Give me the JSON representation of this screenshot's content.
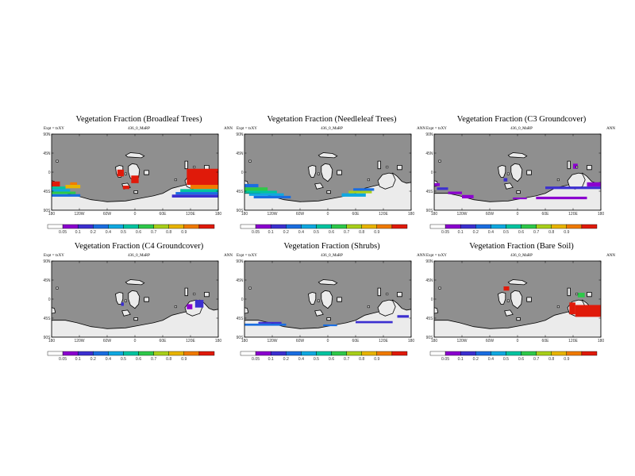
{
  "lat_ticks": [
    "90N",
    "45N",
    "0",
    "45S",
    "90S"
  ],
  "lat_values": [
    90,
    45,
    0,
    -45,
    -90
  ],
  "lon_ticks": [
    "180",
    "120W",
    "60W",
    "0",
    "60E",
    "120E",
    "180"
  ],
  "lon_values": [
    -180,
    -120,
    -60,
    0,
    60,
    120,
    180
  ],
  "colorbar": {
    "colors": [
      "#ffffff",
      "#8b00cf",
      "#3c2fd0",
      "#1a6de0",
      "#10a8e0",
      "#00c4a0",
      "#2ec84a",
      "#a8cf1a",
      "#e8b400",
      "#f07a00",
      "#e01a0a"
    ],
    "labels": [
      "0.05",
      "0.1",
      "0.2",
      "0.4",
      "0.5",
      "0.6",
      "0.7",
      "0.8",
      "0.9"
    ]
  },
  "map_colors": {
    "ocean": "#8f8f8f",
    "land_zero": "#ebebeb",
    "coast": "#000000"
  },
  "panels": [
    {
      "title": "Vegetation Fraction (Broadleaf Trees)",
      "left": "Expt = txXY",
      "center": "436_0_MaRP",
      "right": "ANN",
      "bands": [
        {
          "lon": [
            -180,
            -162
          ],
          "lat": [
            -22,
            -34
          ],
          "level": 10
        },
        {
          "lon": [
            -180,
            -150
          ],
          "lat": [
            -34,
            -40
          ],
          "level": 5
        },
        {
          "lon": [
            -180,
            -140
          ],
          "lat": [
            -40,
            -46
          ],
          "level": 4
        },
        {
          "lon": [
            -180,
            -128
          ],
          "lat": [
            -46,
            -52
          ],
          "level": 6
        },
        {
          "lon": [
            -180,
            -118
          ],
          "lat": [
            -52,
            -58
          ],
          "level": 3
        },
        {
          "lon": [
            -150,
            -118
          ],
          "lat": [
            -30,
            -38
          ],
          "level": 8
        },
        {
          "lon": [
            -140,
            -125
          ],
          "lat": [
            -24,
            -30
          ],
          "level": 9
        },
        {
          "lon": [
            112,
            180
          ],
          "lat": [
            8,
            -30
          ],
          "level": 10
        },
        {
          "lon": [
            120,
            180
          ],
          "lat": [
            -30,
            -40
          ],
          "level": 9
        },
        {
          "lon": [
            98,
            180
          ],
          "lat": [
            -40,
            -47
          ],
          "level": 5
        },
        {
          "lon": [
            88,
            180
          ],
          "lat": [
            -47,
            -53
          ],
          "level": 3
        },
        {
          "lon": [
            80,
            180
          ],
          "lat": [
            -53,
            -60
          ],
          "level": 2
        },
        {
          "lon": [
            -38,
            -24
          ],
          "lat": [
            6,
            -10
          ],
          "level": 10
        },
        {
          "lon": [
            -8,
            8
          ],
          "lat": [
            -8,
            -26
          ],
          "level": 10
        },
        {
          "lon": [
            -26,
            -12
          ],
          "lat": [
            -32,
            -40
          ],
          "level": 10
        }
      ]
    },
    {
      "title": "Vegetation Fraction (Needleleaf Trees)",
      "left": "Expt = txXY",
      "center": "436_0_MaRP",
      "right": "ANN",
      "bands": [
        {
          "lon": [
            -180,
            -150
          ],
          "lat": [
            -28,
            -36
          ],
          "level": 3
        },
        {
          "lon": [
            -180,
            -130
          ],
          "lat": [
            -36,
            -44
          ],
          "level": 6
        },
        {
          "lon": [
            -180,
            -110
          ],
          "lat": [
            -44,
            -50
          ],
          "level": 5
        },
        {
          "lon": [
            -170,
            -95
          ],
          "lat": [
            -50,
            -56
          ],
          "level": 4
        },
        {
          "lon": [
            -160,
            -80
          ],
          "lat": [
            -56,
            -62
          ],
          "level": 3
        },
        {
          "lon": [
            30,
            82
          ],
          "lat": [
            -50,
            -58
          ],
          "level": 4
        },
        {
          "lon": [
            45,
            95
          ],
          "lat": [
            -44,
            -50
          ],
          "level": 7
        },
        {
          "lon": [
            55,
            100
          ],
          "lat": [
            -38,
            -44
          ],
          "level": 3
        }
      ]
    },
    {
      "title": "Vegetation Fraction (C3 Groundcover)",
      "left": "Expt = txXY",
      "center": "436_0_MaRP",
      "right": "ANN",
      "bands": [
        {
          "lon": [
            -180,
            -168
          ],
          "lat": [
            -26,
            -33
          ],
          "level": 1
        },
        {
          "lon": [
            -174,
            -150
          ],
          "lat": [
            -36,
            -42
          ],
          "level": 2
        },
        {
          "lon": [
            -150,
            -120
          ],
          "lat": [
            -46,
            -52
          ],
          "level": 1
        },
        {
          "lon": [
            -120,
            -95
          ],
          "lat": [
            -54,
            -62
          ],
          "level": 1
        },
        {
          "lon": [
            -10,
            20
          ],
          "lat": [
            -60,
            -64
          ],
          "level": 1
        },
        {
          "lon": [
            40,
            150
          ],
          "lat": [
            -58,
            -64
          ],
          "level": 1
        },
        {
          "lon": [
            60,
            180
          ],
          "lat": [
            -34,
            -40
          ],
          "level": 2
        },
        {
          "lon": [
            150,
            180
          ],
          "lat": [
            -24,
            -34
          ],
          "level": 1
        },
        {
          "lon": [
            -30,
            -22
          ],
          "lat": [
            -14,
            -22
          ],
          "level": 2
        },
        {
          "lon": [
            120,
            130
          ],
          "lat": [
            20,
            8
          ],
          "level": 1
        }
      ]
    },
    {
      "title": "Vegetation Fraction (C4 Groundcover)",
      "left": "Expt = txXY",
      "center": "436_0_MaRP",
      "right": "ANN",
      "bands": [
        {
          "lon": [
            130,
            148
          ],
          "lat": [
            -2,
            -20
          ],
          "level": 2
        },
        {
          "lon": [
            112,
            124
          ],
          "lat": [
            -12,
            -24
          ],
          "level": 1
        },
        {
          "lon": [
            -30,
            -24
          ],
          "lat": [
            -8,
            -16
          ],
          "level": 2
        }
      ]
    },
    {
      "title": "Vegetation Fraction (Shrubs)",
      "left": "Expt = txXY",
      "center": "436_0_MaRP",
      "right": "ANN",
      "bands": [
        {
          "lon": [
            -180,
            -90
          ],
          "lat": [
            -58,
            -63
          ],
          "level": 3
        },
        {
          "lon": [
            -150,
            -100
          ],
          "lat": [
            -54,
            -58
          ],
          "level": 2
        },
        {
          "lon": [
            60,
            140
          ],
          "lat": [
            -52,
            -57
          ],
          "level": 2
        },
        {
          "lon": [
            150,
            175
          ],
          "lat": [
            -38,
            -44
          ],
          "level": 2
        },
        {
          "lon": [
            -10,
            20
          ],
          "lat": [
            -60,
            -64
          ],
          "level": 3
        }
      ]
    },
    {
      "title": "Vegetation Fraction (Bare Soil)",
      "left": "Expt = txXY",
      "center": "436_0_MaRP",
      "right": "ANN",
      "bands": [
        {
          "lon": [
            125,
            180
          ],
          "lat": [
            -14,
            -42
          ],
          "level": 10
        },
        {
          "lon": [
            112,
            125
          ],
          "lat": [
            -8,
            -36
          ],
          "level": 10
        },
        {
          "lon": [
            -30,
            -18
          ],
          "lat": [
            30,
            20
          ],
          "level": 10
        },
        {
          "lon": [
            130,
            145
          ],
          "lat": [
            15,
            4
          ],
          "level": 6
        }
      ]
    }
  ]
}
